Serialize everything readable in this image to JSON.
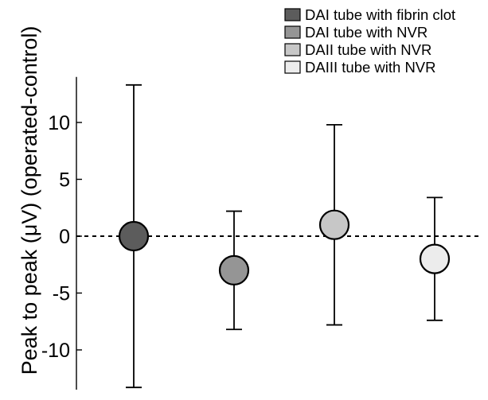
{
  "chart_data": {
    "type": "scatter",
    "ylabel": "Peak to peak (μV) (operated-control)",
    "ylim": [
      -14,
      14
    ],
    "yticks": [
      10,
      5,
      0,
      -5,
      -10
    ],
    "reference_line": 0,
    "grid": false,
    "legend_position": "top-right",
    "series": [
      {
        "name": "DAI tube with fibrin clot",
        "mean": 0.0,
        "lower": -13.3,
        "upper": 13.3,
        "color": "#5c5c5c"
      },
      {
        "name": "DAI tube with NVR",
        "mean": -3.0,
        "lower": -8.2,
        "upper": 2.2,
        "color": "#959595"
      },
      {
        "name": "DAII tube with NVR",
        "mean": 1.0,
        "lower": -7.8,
        "upper": 9.8,
        "color": "#c7c7c7"
      },
      {
        "name": "DAIII tube with NVR",
        "mean": -2.0,
        "lower": -7.4,
        "upper": 3.4,
        "color": "#ececec"
      }
    ]
  }
}
